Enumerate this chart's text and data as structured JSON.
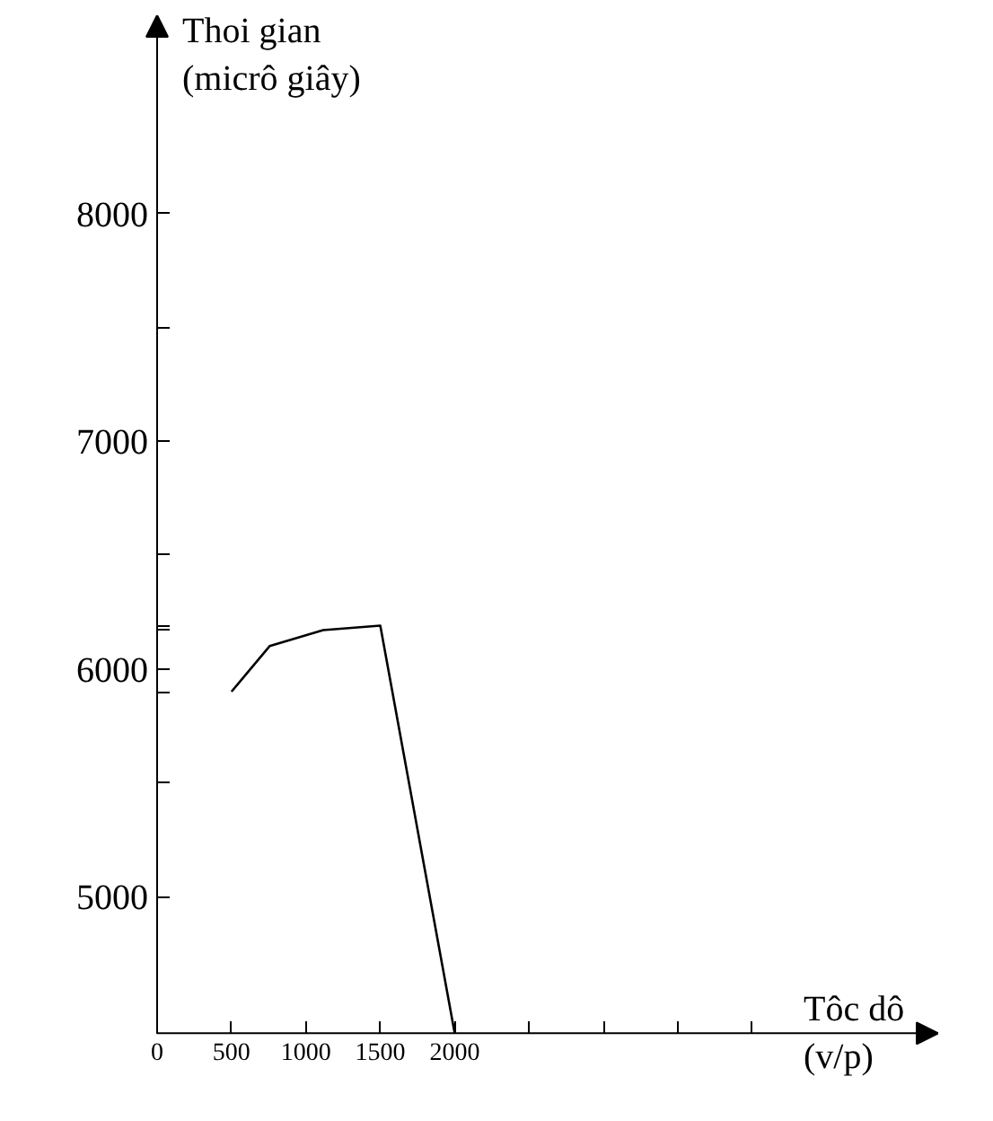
{
  "chart_data": {
    "type": "line",
    "xlabel": "Tôc dô\n(v/p)",
    "ylabel": "Thoi gian\n(micrô giây)",
    "x": [
      500,
      756,
      1116,
      1500,
      2000
    ],
    "series": [
      {
        "color": "#000000",
        "values": [
          5900,
          6100,
          6170,
          6190,
          4400
        ]
      }
    ],
    "xlim": [
      0,
      5250
    ],
    "ylim": [
      4400,
      8870
    ],
    "xticks": [
      0,
      500,
      1000,
      1500,
      2000,
      {
        "value": 2500,
        "label": null
      },
      {
        "value": 3000,
        "label": null
      },
      {
        "value": 3500,
        "label": null
      },
      {
        "value": 4000,
        "label": null
      }
    ],
    "yticks": [
      5000,
      6000,
      7000,
      8000,
      {
        "value": 5500,
        "label": null
      },
      {
        "value": 6500,
        "label": null
      },
      {
        "value": 7500,
        "label": null
      },
      {
        "value": 5900,
        "label": null
      },
      {
        "value": 6170,
        "label": null
      },
      {
        "value": 6190,
        "label": null
      }
    ],
    "grid": false,
    "marker": "none",
    "line_style": "solid"
  }
}
